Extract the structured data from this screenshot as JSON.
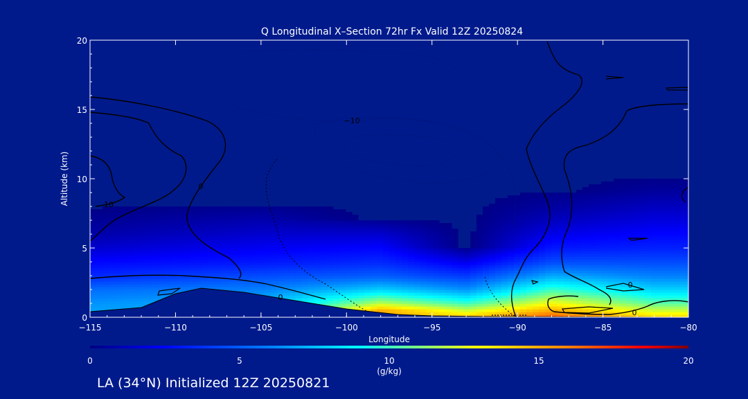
{
  "chart_data": {
    "type": "heatmap",
    "title": "Q Longitudinal X–Section 72hr  Fx Valid 12Z 20250824",
    "xlabel": "Longitude",
    "ylabel": "Altitude (km)",
    "xlim": [
      -115,
      -80
    ],
    "ylim": [
      0,
      20
    ],
    "xticks": [
      "−115",
      "−110",
      "−105",
      "−100",
      "−95",
      "−90",
      "−85",
      "−80"
    ],
    "xtick_values": [
      -115,
      -110,
      -105,
      -100,
      -95,
      -90,
      -85,
      -80
    ],
    "yticks": [
      "0",
      "5",
      "10",
      "15",
      "20"
    ],
    "ytick_values": [
      0,
      5,
      10,
      15,
      20
    ],
    "colorbar": {
      "label": "(g/kg)",
      "range": [
        0,
        20
      ],
      "ticks": [
        "0",
        "5",
        "10",
        "15",
        "20"
      ],
      "tick_values": [
        0,
        5,
        10,
        15,
        20
      ]
    },
    "contour_labels": [
      "0",
      "0",
      "0",
      "0",
      "10",
      "−10"
    ],
    "terrain_km": [
      [
        -115,
        0.4
      ],
      [
        -112,
        0.7
      ],
      [
        -110,
        1.7
      ],
      [
        -108.5,
        2.1
      ],
      [
        -106,
        1.8
      ],
      [
        -103,
        1.2
      ],
      [
        -100,
        0.6
      ],
      [
        -97,
        0.2
      ],
      [
        -95,
        0.1
      ],
      [
        -92,
        0.05
      ],
      [
        -80,
        0.0
      ]
    ],
    "q_profiles": [
      {
        "lon": -115,
        "altitude_km": [
          0,
          1,
          2,
          3,
          4,
          5,
          6,
          7,
          8
        ],
        "q_gkg": [
          7,
          6.5,
          5.5,
          3.5,
          2.5,
          1.5,
          0.8,
          0.4,
          0.1
        ]
      },
      {
        "lon": -105,
        "altitude_km": [
          1.2,
          2,
          3,
          4,
          5,
          6,
          7,
          8
        ],
        "q_gkg": [
          7,
          6,
          4.5,
          3,
          2.2,
          1.5,
          0.9,
          0.3
        ]
      },
      {
        "lon": -98,
        "altitude_km": [
          0.5,
          1,
          2,
          3,
          4,
          5,
          6,
          7
        ],
        "q_gkg": [
          15,
          12,
          8,
          5,
          3.5,
          2.5,
          1.5,
          0.4
        ]
      },
      {
        "lon": -93,
        "altitude_km": [
          0.1,
          1,
          2,
          3,
          4,
          5
        ],
        "q_gkg": [
          14,
          10,
          6.5,
          4,
          2,
          0.3
        ]
      },
      {
        "lon": -88,
        "altitude_km": [
          0,
          1,
          2,
          3,
          4,
          5,
          6,
          7,
          8,
          9
        ],
        "q_gkg": [
          17,
          13,
          10,
          7,
          4.5,
          3,
          2,
          1.2,
          0.6,
          0.2
        ]
      },
      {
        "lon": -82,
        "altitude_km": [
          0,
          1,
          2,
          3,
          4,
          5,
          6,
          7,
          8,
          9,
          10
        ],
        "q_gkg": [
          14,
          10.5,
          8,
          6,
          4.5,
          3.3,
          2.5,
          1.8,
          1.2,
          0.6,
          0.2
        ]
      }
    ]
  },
  "footer": "LA (34°N) Initialized 12Z 20250821",
  "colors": {
    "background": "#001a8c",
    "text": "#ffffff",
    "colormap": [
      "#000080",
      "#0000ff",
      "#0080ff",
      "#00ffff",
      "#ffff00",
      "#ff8000",
      "#ff0000",
      "#800000"
    ]
  }
}
